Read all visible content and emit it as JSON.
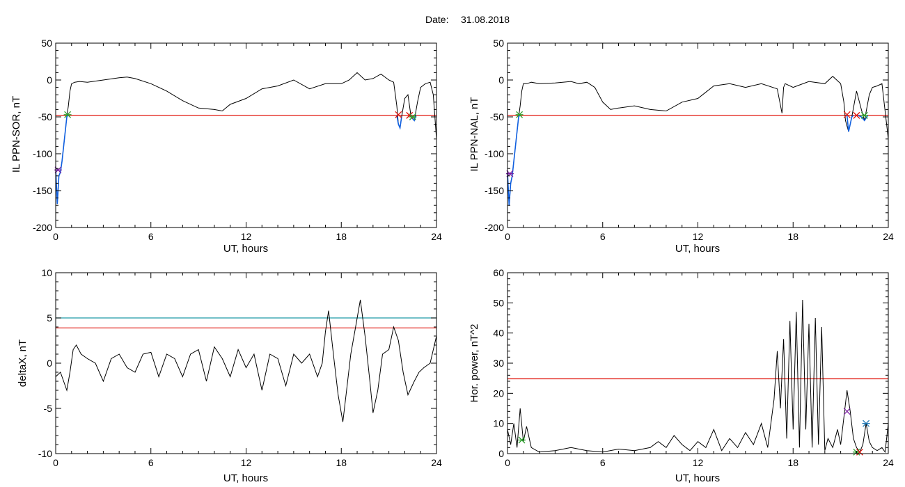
{
  "header": {
    "date_label": "Date:",
    "date_value": "31.08.2018"
  },
  "colors": {
    "trace": "#000000",
    "threshold": "#e0140c",
    "threshold_alt": "#1f9aa8",
    "highlight": "#1060e0",
    "marker_green": "#2ca02c",
    "marker_red": "#e0140c",
    "marker_purple": "#7a1fa0",
    "marker_blue": "#1f77b4"
  },
  "chart_data": [
    {
      "type": "line",
      "ylabel": "IL PPN-SOR, nT",
      "xlabel": "UT, hours",
      "xlim": [
        0,
        24
      ],
      "ylim": [
        -200,
        50
      ],
      "xticks": [
        0,
        6,
        12,
        18,
        24
      ],
      "yticks": [
        -200,
        -150,
        -100,
        -50,
        0,
        50
      ],
      "threshold": -48,
      "series": [
        {
          "color": "#000000",
          "x": [
            0,
            0.1,
            0.2,
            0.3,
            0.4,
            0.5,
            0.6,
            0.7,
            0.8,
            0.9,
            1.0,
            1.2,
            1.5,
            2,
            3,
            4,
            4.5,
            5,
            6,
            7,
            8,
            9,
            10,
            10.5,
            11,
            12,
            13,
            13.5,
            14,
            15,
            16,
            17,
            18,
            18.5,
            19,
            19.5,
            20,
            20.5,
            21,
            21.3,
            21.5,
            21.6,
            21.7,
            21.8,
            22.0,
            22.2,
            22.4,
            22.6,
            22.8,
            23.0,
            23.3,
            23.6,
            23.8,
            24
          ],
          "values": [
            -120,
            -168,
            -130,
            -125,
            -110,
            -90,
            -70,
            -50,
            -35,
            -15,
            -5,
            -3,
            -2,
            -3,
            0,
            3,
            4,
            2,
            -5,
            -15,
            -28,
            -38,
            -40,
            -42,
            -33,
            -25,
            -12,
            -10,
            -8,
            0,
            -12,
            -5,
            -5,
            0,
            10,
            0,
            2,
            8,
            0,
            -3,
            -35,
            -60,
            -65,
            -50,
            -25,
            -20,
            -50,
            -55,
            -30,
            -10,
            -5,
            -3,
            -20,
            -80
          ]
        },
        {
          "color": "#1060e0",
          "x": [
            0,
            0.1,
            0.2,
            0.3,
            0.4,
            0.5,
            0.6,
            0.7,
            0.8
          ],
          "values": [
            -120,
            -168,
            -130,
            -125,
            -110,
            -90,
            -70,
            -50,
            -47
          ]
        },
        {
          "color": "#1060e0",
          "x": [
            21.5,
            21.6,
            21.7,
            21.8
          ],
          "values": [
            -48,
            -60,
            -65,
            -50
          ]
        },
        {
          "color": "#1060e0",
          "x": [
            22.35,
            22.4,
            22.6,
            22.7
          ],
          "values": [
            -48,
            -50,
            -55,
            -48
          ]
        }
      ],
      "markers": [
        {
          "x": 0.15,
          "y": -122,
          "symbol": "asterisk",
          "color": "#7a1fa0"
        },
        {
          "x": 0.75,
          "y": -47,
          "symbol": "asterisk",
          "color": "#2ca02c"
        },
        {
          "x": 21.6,
          "y": -47,
          "symbol": "cross",
          "color": "#e0140c"
        },
        {
          "x": 22.3,
          "y": -48,
          "symbol": "cross",
          "color": "#e0140c"
        },
        {
          "x": 22.5,
          "y": -50,
          "symbol": "asterisk",
          "color": "#2ca02c"
        }
      ]
    },
    {
      "type": "line",
      "ylabel": "IL PPN-NAL, nT",
      "xlabel": "UT, hours",
      "xlim": [
        0,
        24
      ],
      "ylim": [
        -200,
        50
      ],
      "xticks": [
        0,
        6,
        12,
        18,
        24
      ],
      "yticks": [
        -200,
        -150,
        -100,
        -50,
        0,
        50
      ],
      "threshold": -48,
      "series": [
        {
          "color": "#000000",
          "x": [
            0,
            0.1,
            0.2,
            0.3,
            0.4,
            0.5,
            0.6,
            0.7,
            0.8,
            0.9,
            1.0,
            1.2,
            1.5,
            2,
            3,
            4,
            4.5,
            5,
            5.5,
            6,
            6.5,
            7,
            8,
            9,
            10,
            11,
            12,
            13,
            14,
            15,
            16,
            17,
            17.3,
            17.4,
            17.5,
            18,
            19,
            20,
            20.5,
            21,
            21.2,
            21.3,
            21.5,
            21.7,
            22.0,
            22.3,
            22.5,
            22.8,
            23.0,
            23.3,
            23.6,
            24
          ],
          "values": [
            -125,
            -170,
            -140,
            -130,
            -110,
            -90,
            -70,
            -50,
            -35,
            -15,
            -5,
            -5,
            -3,
            -5,
            -4,
            -2,
            -5,
            -3,
            -10,
            -30,
            -40,
            -38,
            -35,
            -40,
            -42,
            -30,
            -25,
            -8,
            -5,
            -10,
            -5,
            -12,
            -45,
            -10,
            -5,
            -10,
            -2,
            -5,
            5,
            -5,
            -30,
            -55,
            -70,
            -50,
            -15,
            -40,
            -55,
            -20,
            -10,
            -8,
            -5,
            -80
          ]
        },
        {
          "color": "#1060e0",
          "x": [
            0,
            0.1,
            0.2,
            0.3,
            0.4,
            0.5,
            0.6,
            0.7,
            0.8
          ],
          "values": [
            -125,
            -170,
            -140,
            -130,
            -110,
            -90,
            -70,
            -50,
            -47
          ]
        },
        {
          "color": "#1060e0",
          "x": [
            21.4,
            21.5,
            21.7,
            21.8
          ],
          "values": [
            -48,
            -70,
            -50,
            -48
          ]
        },
        {
          "color": "#1060e0",
          "x": [
            22.1,
            22.3,
            22.5,
            22.7
          ],
          "values": [
            -48,
            -50,
            -55,
            -48
          ]
        }
      ],
      "markers": [
        {
          "x": 0.15,
          "y": -127,
          "symbol": "asterisk",
          "color": "#7a1fa0"
        },
        {
          "x": 0.75,
          "y": -47,
          "symbol": "asterisk",
          "color": "#2ca02c"
        },
        {
          "x": 21.4,
          "y": -47,
          "symbol": "cross",
          "color": "#e0140c"
        },
        {
          "x": 22.0,
          "y": -48,
          "symbol": "cross",
          "color": "#e0140c"
        },
        {
          "x": 22.5,
          "y": -48,
          "symbol": "asterisk",
          "color": "#2ca02c"
        }
      ]
    },
    {
      "type": "line",
      "ylabel": "deltaX, nT",
      "xlabel": "UT, hours",
      "xlim": [
        0,
        24
      ],
      "ylim": [
        -10,
        10
      ],
      "xticks": [
        0,
        6,
        12,
        18,
        24
      ],
      "yticks": [
        -10,
        -5,
        0,
        5,
        10
      ],
      "threshold": 3.9,
      "threshold_alt": 5.0,
      "series": [
        {
          "color": "#000000",
          "x": [
            0,
            0.3,
            0.5,
            0.7,
            0.9,
            1.1,
            1.3,
            1.6,
            2,
            2.5,
            3,
            3.5,
            4,
            4.5,
            5,
            5.5,
            6,
            6.5,
            7,
            7.5,
            8,
            8.5,
            9,
            9.5,
            10,
            10.5,
            11,
            11.5,
            12,
            12.5,
            13,
            13.5,
            14,
            14.5,
            15,
            15.5,
            16,
            16.5,
            16.8,
            17.0,
            17.2,
            17.5,
            17.8,
            18.1,
            18.3,
            18.6,
            18.9,
            19.2,
            19.5,
            19.8,
            20.0,
            20.3,
            20.6,
            21.0,
            21.3,
            21.6,
            21.9,
            22.2,
            22.6,
            22.9,
            23.2,
            23.6,
            24
          ],
          "values": [
            -1.5,
            -1.0,
            -2.0,
            -3.0,
            -1.0,
            1.5,
            2.0,
            1.0,
            0.5,
            0.0,
            -2.0,
            0.5,
            1.0,
            -0.5,
            -1.0,
            1.0,
            1.2,
            -1.5,
            1.0,
            0.5,
            -1.5,
            1.0,
            1.5,
            -2.0,
            1.8,
            0.5,
            -1.5,
            1.5,
            -0.5,
            1.0,
            -3.0,
            1.0,
            0.5,
            -2.5,
            1.0,
            0.0,
            1.0,
            -1.5,
            0.0,
            3.5,
            5.8,
            1.0,
            -3.5,
            -6.5,
            -3.5,
            1.0,
            4.0,
            7.0,
            3.0,
            -2.0,
            -5.5,
            -3.0,
            1.0,
            1.5,
            4.0,
            2.5,
            -1.0,
            -3.5,
            -2.0,
            -1.0,
            -0.5,
            0.0,
            3.0
          ]
        }
      ],
      "markers": []
    },
    {
      "type": "line",
      "ylabel": "Hor. power, nT^2",
      "xlabel": "UT, hours",
      "xlim": [
        0,
        24
      ],
      "ylim": [
        0,
        60
      ],
      "xticks": [
        0,
        6,
        12,
        18,
        24
      ],
      "yticks": [
        0,
        10,
        20,
        30,
        40,
        50,
        60
      ],
      "threshold": 24.8,
      "series": [
        {
          "color": "#000000",
          "x": [
            0,
            0.2,
            0.4,
            0.6,
            0.8,
            1.0,
            1.2,
            1.5,
            2,
            3,
            4,
            5,
            6,
            7,
            8,
            9,
            9.5,
            10,
            10.5,
            11,
            11.5,
            12,
            12.5,
            13,
            13.5,
            14,
            14.5,
            15,
            15.5,
            16,
            16.4,
            16.8,
            17.0,
            17.2,
            17.4,
            17.6,
            17.8,
            18.0,
            18.2,
            18.4,
            18.6,
            18.8,
            19.0,
            19.2,
            19.4,
            19.6,
            19.8,
            20.0,
            20.2,
            20.5,
            20.8,
            21.0,
            21.2,
            21.4,
            21.6,
            21.8,
            22.0,
            22.2,
            22.4,
            22.6,
            22.8,
            23.0,
            23.3,
            23.6,
            23.8,
            24
          ],
          "values": [
            8,
            3,
            10,
            2,
            15,
            4,
            9,
            2,
            0.5,
            1,
            2,
            1,
            0.5,
            1.5,
            1,
            2,
            4,
            2,
            6,
            3,
            1,
            4,
            2,
            8,
            1,
            5,
            2,
            7,
            3,
            10,
            2,
            18,
            34,
            15,
            38,
            5,
            44,
            8,
            47,
            2,
            51,
            8,
            43,
            2,
            45,
            3,
            42,
            1,
            5,
            2,
            8,
            3,
            12,
            21,
            14,
            5,
            2,
            0.5,
            3,
            10,
            4,
            2,
            1,
            2,
            0.5,
            10
          ]
        }
      ],
      "markers": [
        {
          "x": 0.9,
          "y": 4.5,
          "symbol": "asterisk",
          "color": "#2ca02c"
        },
        {
          "x": 21.4,
          "y": 14,
          "symbol": "cross",
          "color": "#7a1fa0"
        },
        {
          "x": 22.0,
          "y": 0.5,
          "symbol": "asterisk",
          "color": "#2ca02c"
        },
        {
          "x": 22.2,
          "y": 0.5,
          "symbol": "cross",
          "color": "#e0140c"
        },
        {
          "x": 22.6,
          "y": 10,
          "symbol": "asterisk",
          "color": "#1f77b4"
        }
      ]
    }
  ]
}
